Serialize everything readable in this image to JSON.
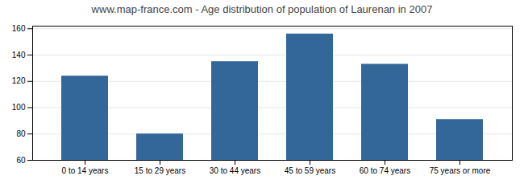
{
  "chart_data": {
    "type": "bar",
    "title": "www.map-france.com - Age distribution of population of Laurenan in 2007",
    "categories": [
      "0 to 14 years",
      "15 to 29 years",
      "30 to 44 years",
      "45 to 59 years",
      "60 to 74 years",
      "75 years or more"
    ],
    "values": [
      124,
      80,
      135,
      156,
      133,
      91
    ],
    "color": "#336699",
    "ylim": [
      60,
      162
    ],
    "yticks": [
      60,
      80,
      100,
      120,
      140,
      160
    ],
    "grid": true
  }
}
